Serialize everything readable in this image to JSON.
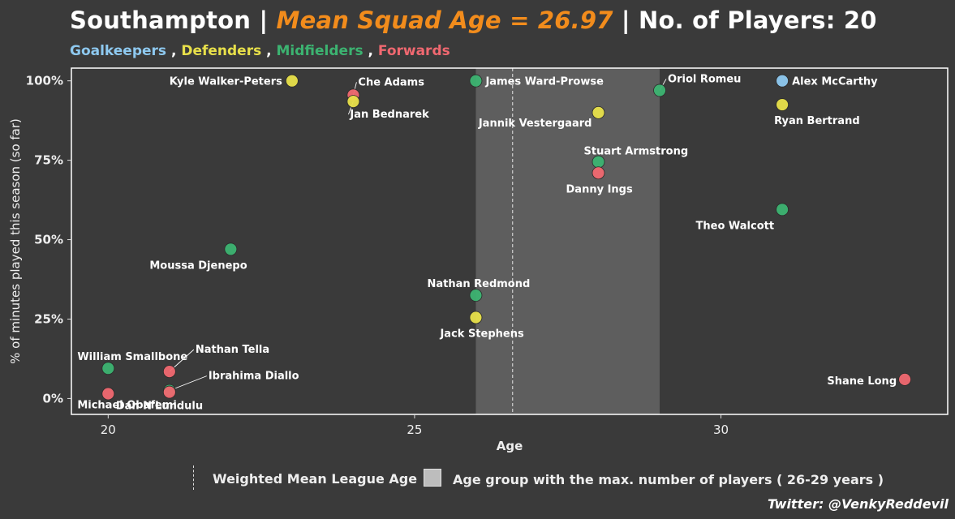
{
  "title": {
    "team": "Southampton",
    "sep1": " | ",
    "mean_text": "Mean Squad Age = 26.97",
    "sep2": " | ",
    "players_text": "No. of Players: 20"
  },
  "legend_positions": [
    {
      "label": "Goalkeepers",
      "color": "#8ec9f0"
    },
    {
      "label": "Defenders",
      "color": "#e8e04a"
    },
    {
      "label": "Midfielders",
      "color": "#3cb371"
    },
    {
      "label": "Forwards",
      "color": "#f06870"
    }
  ],
  "legend_sep": " , ",
  "legend": {
    "mean_line_label": "Weighted Mean League Age",
    "band_label": "Age group with the max. number of players ( 26-29 years )"
  },
  "credit": "Twitter: @VenkyReddevil",
  "colors": {
    "background": "#3a3a3a",
    "band": "#5e5e5e",
    "Goalkeeper": "#8ec9f0",
    "Defender": "#e8e04a",
    "Midfielder": "#3cb371",
    "Forward": "#f06870"
  },
  "chart_data": {
    "type": "scatter",
    "xlabel": "Age",
    "ylabel": "% of minutes played this season (so far)",
    "xlim": [
      19.4,
      33.7
    ],
    "ylim": [
      -0.05,
      1.04
    ],
    "xticks": [
      20,
      25,
      30
    ],
    "xtick_labels": [
      "20",
      "25",
      "30"
    ],
    "yticks": [
      0,
      0.25,
      0.5,
      0.75,
      1.0
    ],
    "ytick_labels": [
      "0%",
      "25%",
      "50%",
      "75%",
      "100%"
    ],
    "grid": false,
    "mean_league_age": 26.6,
    "band": [
      26,
      29
    ],
    "points": [
      {
        "name": "Kyle Walker-Peters",
        "position": "Defender",
        "age": 23,
        "minutes_pct": 1.0
      },
      {
        "name": "Che Adams",
        "position": "Forward",
        "age": 24,
        "minutes_pct": 0.955
      },
      {
        "name": "Jan Bednarek",
        "position": "Defender",
        "age": 24,
        "minutes_pct": 0.935
      },
      {
        "name": "James Ward-Prowse",
        "position": "Midfielder",
        "age": 26,
        "minutes_pct": 1.0
      },
      {
        "name": "Jannik Vestergaard",
        "position": "Defender",
        "age": 28,
        "minutes_pct": 0.9
      },
      {
        "name": "Oriol Romeu",
        "position": "Midfielder",
        "age": 29,
        "minutes_pct": 0.97
      },
      {
        "name": "Alex McCarthy",
        "position": "Goalkeeper",
        "age": 31,
        "minutes_pct": 1.0
      },
      {
        "name": "Ryan Bertrand",
        "position": "Defender",
        "age": 31,
        "minutes_pct": 0.925
      },
      {
        "name": "Stuart Armstrong",
        "position": "Midfielder",
        "age": 28,
        "minutes_pct": 0.745
      },
      {
        "name": "Danny Ings",
        "position": "Forward",
        "age": 28,
        "minutes_pct": 0.71
      },
      {
        "name": "Theo Walcott",
        "position": "Midfielder",
        "age": 31,
        "minutes_pct": 0.595
      },
      {
        "name": "Moussa Djenepo",
        "position": "Midfielder",
        "age": 22,
        "minutes_pct": 0.47
      },
      {
        "name": "Nathan Redmond",
        "position": "Midfielder",
        "age": 26,
        "minutes_pct": 0.325
      },
      {
        "name": "Jack Stephens",
        "position": "Defender",
        "age": 26,
        "minutes_pct": 0.255
      },
      {
        "name": "William Smallbone",
        "position": "Midfielder",
        "age": 20,
        "minutes_pct": 0.095
      },
      {
        "name": "Nathan Tella",
        "position": "Forward",
        "age": 21,
        "minutes_pct": 0.085
      },
      {
        "name": "Ibrahima Diallo",
        "position": "Midfielder",
        "age": 21,
        "minutes_pct": 0.025
      },
      {
        "name": "Dan N'Lundulu",
        "position": "Forward",
        "age": 21,
        "minutes_pct": 0.02
      },
      {
        "name": "Michael Obafemi",
        "position": "Forward",
        "age": 20,
        "minutes_pct": 0.015
      },
      {
        "name": "Shane Long",
        "position": "Forward",
        "age": 33,
        "minutes_pct": 0.06
      }
    ]
  }
}
